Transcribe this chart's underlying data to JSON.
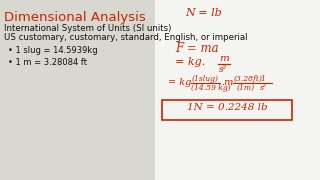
{
  "bg_color_left": "#c8c8c0",
  "bg_color_right": "#f0f0ec",
  "title": "Dimensional Analysis",
  "title_color": "#cc2200",
  "title_fontsize": 9.5,
  "subtitle1": "International System of Units (SI units)",
  "subtitle2": "US customary, customary, standard, English, or imperial",
  "subtitle_color": "#111111",
  "subtitle_fontsize": 6.2,
  "bullet1": "• 1 slug = 14.5939kg",
  "bullet2": "• 1 m = 3.28084 ft",
  "bullet_color": "#111111",
  "bullet_fontsize": 6.0,
  "red": "#cc2200",
  "box_color": "#cc2200"
}
